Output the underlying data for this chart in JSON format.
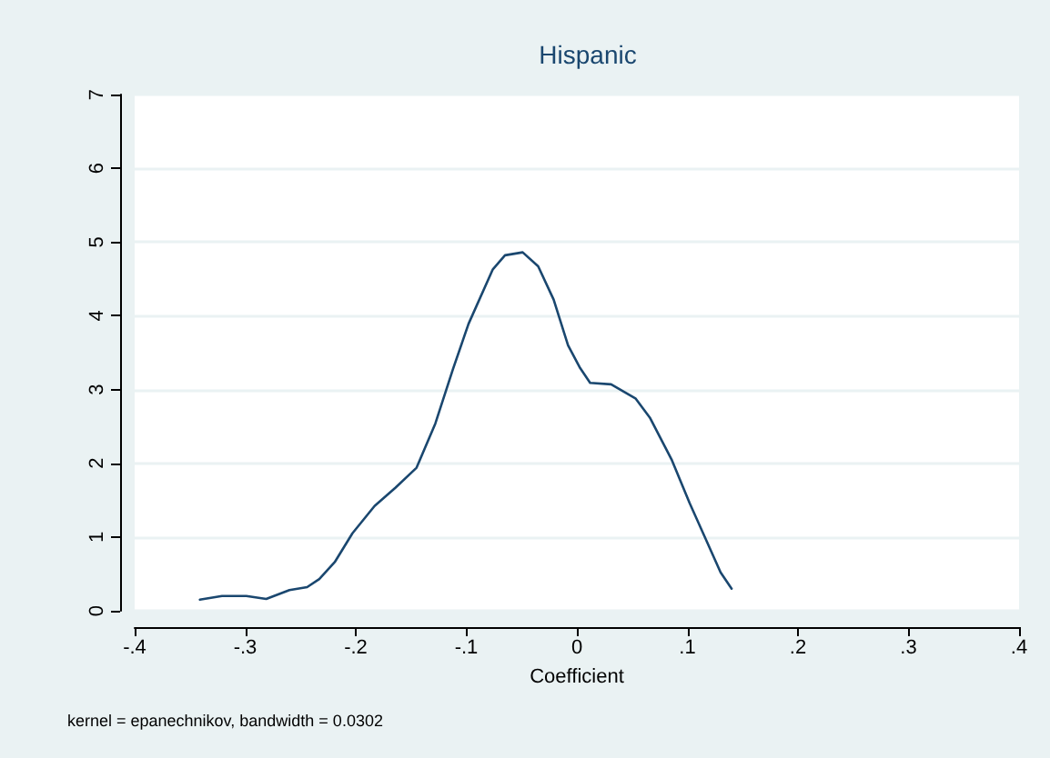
{
  "chart_data": {
    "type": "line",
    "title": "Hispanic",
    "xlabel": "Coefficient",
    "annotations": [
      "kernel = epanechnikov, bandwidth = 0.0302"
    ],
    "x": [
      -0.341,
      -0.321,
      -0.299,
      -0.281,
      -0.26,
      -0.244,
      -0.233,
      -0.219,
      -0.203,
      -0.183,
      -0.164,
      -0.145,
      -0.128,
      -0.112,
      -0.098,
      -0.076,
      -0.065,
      -0.049,
      -0.035,
      -0.021,
      -0.008,
      0.003,
      0.012,
      0.031,
      0.053,
      0.066,
      0.086,
      0.102,
      0.119,
      0.13,
      0.14
    ],
    "series": [
      {
        "color": "#1a476f",
        "values": [
          0.15,
          0.2,
          0.2,
          0.16,
          0.28,
          0.32,
          0.43,
          0.66,
          1.05,
          1.42,
          1.67,
          1.94,
          2.54,
          3.28,
          3.89,
          4.63,
          4.82,
          4.86,
          4.67,
          4.22,
          3.6,
          3.29,
          3.09,
          3.07,
          2.88,
          2.62,
          2.04,
          1.46,
          0.89,
          0.52,
          0.3
        ]
      }
    ],
    "xlim": [
      -0.4,
      0.4
    ],
    "xticks": [
      {
        "value": -0.4,
        "label": "-.4"
      },
      {
        "value": -0.3,
        "label": "-.3"
      },
      {
        "value": -0.2,
        "label": "-.2"
      },
      {
        "value": -0.1,
        "label": "-.1"
      },
      0,
      {
        "value": 0.1,
        "label": ".1"
      },
      {
        "value": 0.2,
        "label": ".2"
      },
      {
        "value": 0.3,
        "label": ".3"
      },
      {
        "value": 0.4,
        "label": ".4"
      }
    ],
    "ylim": [
      0,
      7
    ],
    "yticks": [
      0,
      1,
      2,
      3,
      4,
      5,
      6,
      7
    ],
    "grid": "y",
    "marker": "none",
    "line_style": "solid"
  }
}
